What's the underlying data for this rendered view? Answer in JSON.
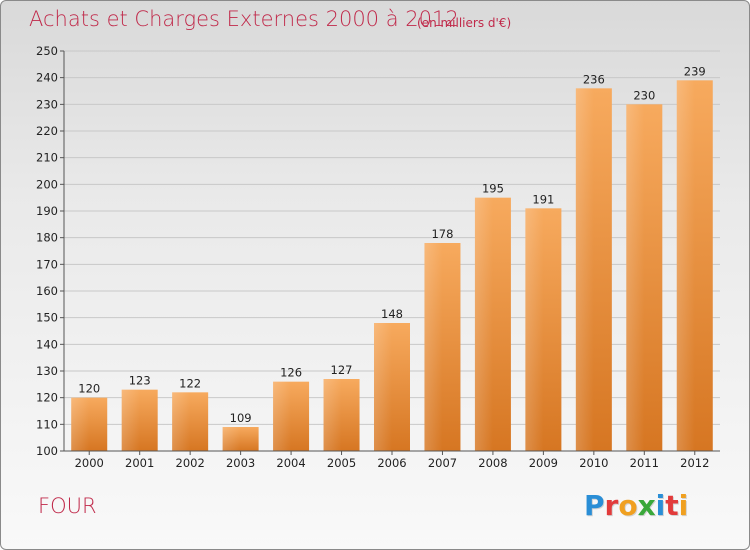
{
  "header": {
    "title": "Achats et Charges Externes 2000 à 2012",
    "unit": "(en milliers d'€)"
  },
  "footer": {
    "commune": "FOUR",
    "logo_text": "Proxiti",
    "logo_letters": [
      "P",
      "r",
      "o",
      "x",
      "i",
      "t",
      "i"
    ],
    "logo_colors": [
      "#2a8ed6",
      "#e23b3b",
      "#f0a020",
      "#3aa83a",
      "#2a8ed6",
      "#e23b3b",
      "#f0a020"
    ]
  },
  "colors": {
    "title": "#c0294a",
    "bar_light": "#f5a65a",
    "bar_dark": "#d97a26"
  },
  "chart_data": {
    "type": "bar",
    "title": "Achats et Charges Externes 2000 à 2012",
    "subtitle": "(en milliers d'€)",
    "categories": [
      "2000",
      "2001",
      "2002",
      "2003",
      "2004",
      "2005",
      "2006",
      "2007",
      "2008",
      "2009",
      "2010",
      "2011",
      "2012"
    ],
    "values": [
      120,
      123,
      122,
      109,
      126,
      127,
      148,
      178,
      195,
      191,
      236,
      230,
      239
    ],
    "ylim": [
      100,
      250
    ],
    "yticks": [
      100,
      110,
      120,
      130,
      140,
      150,
      160,
      170,
      180,
      190,
      200,
      210,
      220,
      230,
      240,
      250
    ],
    "grid": true,
    "data_labels": true
  }
}
